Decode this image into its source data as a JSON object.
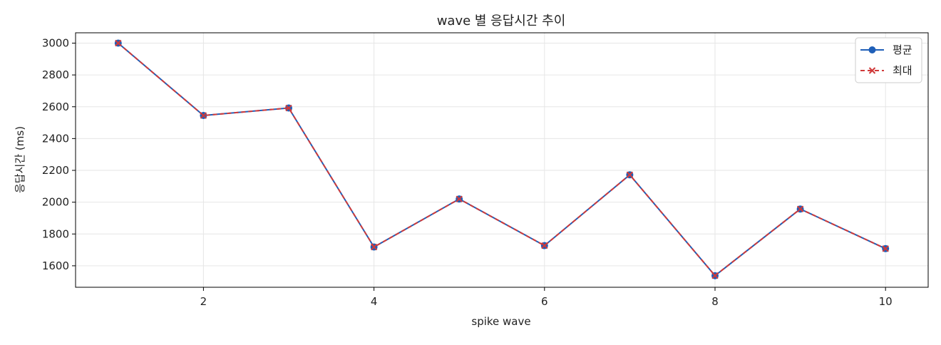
{
  "chart_data": {
    "type": "line",
    "title": "wave 별 응답시간 추이",
    "xlabel": "spike wave",
    "ylabel": "응답시간 (ms)",
    "x": [
      1,
      2,
      3,
      4,
      5,
      6,
      7,
      8,
      9,
      10
    ],
    "xlim": [
      0.5,
      10.5
    ],
    "ylim": [
      1465,
      3065
    ],
    "xticks": [
      2,
      4,
      6,
      8,
      10
    ],
    "yticks": [
      1600,
      1800,
      2000,
      2200,
      2400,
      2600,
      2800,
      3000
    ],
    "grid": true,
    "legend_position": "top-right",
    "series": [
      {
        "name": "평균",
        "values": [
          3000,
          2545,
          2592,
          1718,
          2020,
          1727,
          2172,
          1538,
          1957,
          1708
        ],
        "color": "#1f5fb8",
        "marker": "circle",
        "line_style": "solid"
      },
      {
        "name": "최대",
        "values": [
          3000,
          2545,
          2592,
          1718,
          2020,
          1727,
          2172,
          1538,
          1957,
          1708
        ],
        "color": "#d03a3a",
        "marker": "x",
        "line_style": "dashed"
      }
    ]
  }
}
